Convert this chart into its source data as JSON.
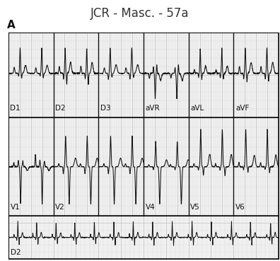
{
  "title": "JCR - Masc. - 57a",
  "label_A": "A",
  "bg_color": "#f0f0f0",
  "grid_minor_color": "#d8d8d8",
  "grid_major_color": "#c0c0c0",
  "line_color": "#111111",
  "border_color": "#111111",
  "labels_row1": [
    "D1",
    "D2",
    "D3",
    "aVR",
    "aVL",
    "aVF"
  ],
  "labels_row2": [
    "V1",
    "V2",
    "",
    "V4",
    "V5",
    "V6"
  ],
  "label_row3": "D2",
  "title_fontsize": 12,
  "label_fontsize": 7.5
}
